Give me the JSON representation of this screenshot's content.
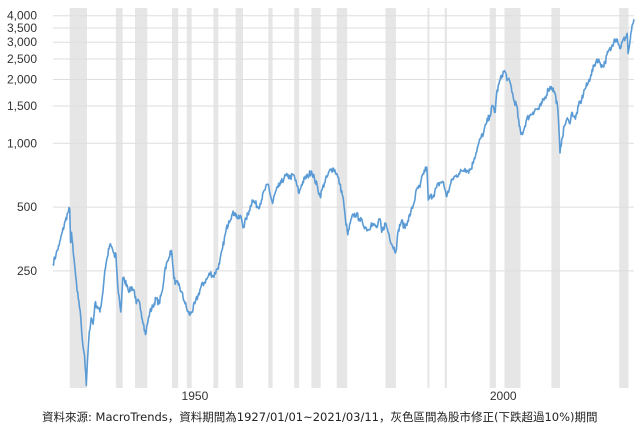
{
  "note": "資料來源: MacroTrends，資料期間為1927/01/01~2021/03/11，灰色區間為股市修正(下跌超過10%)期間",
  "colors": {
    "line": "#5b9bd5",
    "band": "#e6e6e6",
    "grid": "#dedede"
  },
  "chart_data": {
    "type": "line",
    "title": "",
    "xlabel": "",
    "ylabel": "",
    "y_scale": "log",
    "ylim": [
      70,
      4350
    ],
    "xlim": [
      1927.0,
      2021.2
    ],
    "grid": "horizontal",
    "y_ticks": [
      {
        "value": 250,
        "label": "250"
      },
      {
        "value": 500,
        "label": "500"
      },
      {
        "value": 1000,
        "label": "1,000"
      },
      {
        "value": 1500,
        "label": "1,500"
      },
      {
        "value": 2000,
        "label": "2,000"
      },
      {
        "value": 2500,
        "label": "2,500"
      },
      {
        "value": 3000,
        "label": "3,000"
      },
      {
        "value": 3500,
        "label": "3,500"
      },
      {
        "value": 4000,
        "label": "4,000"
      }
    ],
    "x_ticks": [
      {
        "value": 1950,
        "label": "1950"
      },
      {
        "value": 2000,
        "label": "2000"
      }
    ],
    "correction_periods": [
      [
        1929.7,
        1932.5
      ],
      [
        1937.2,
        1938.3
      ],
      [
        1940.3,
        1942.3
      ],
      [
        1946.3,
        1947.3
      ],
      [
        1948.7,
        1949.5
      ],
      [
        1953.0,
        1953.8
      ],
      [
        1956.6,
        1957.8
      ],
      [
        1961.9,
        1962.6
      ],
      [
        1966.1,
        1966.9
      ],
      [
        1968.9,
        1970.4
      ],
      [
        1973.0,
        1974.7
      ],
      [
        1980.9,
        1982.6
      ],
      [
        1987.7,
        1987.95
      ],
      [
        1990.5,
        1990.85
      ],
      [
        1997.8,
        1998.8
      ],
      [
        2000.2,
        2002.8
      ],
      [
        2007.8,
        2009.2
      ],
      [
        2018.8,
        2020.3
      ]
    ],
    "series": [
      {
        "x": [
          1927.0,
          1927.5,
          1928.0,
          1928.5,
          1929.0,
          1929.4,
          1929.7,
          1929.85,
          1930.0,
          1930.3,
          1930.6,
          1930.9,
          1931.2,
          1931.5,
          1931.8,
          1932.1,
          1932.4,
          1932.6,
          1932.9,
          1933.2,
          1933.5,
          1933.8,
          1934.2,
          1934.6,
          1935.0,
          1935.4,
          1935.8,
          1936.2,
          1936.6,
          1937.0,
          1937.2,
          1937.5,
          1937.8,
          1938.0,
          1938.3,
          1938.6,
          1939.0,
          1939.4,
          1939.8,
          1940.2,
          1940.5,
          1940.9,
          1941.3,
          1941.7,
          1942.0,
          1942.3,
          1942.7,
          1943.2,
          1943.7,
          1944.2,
          1944.7,
          1945.2,
          1945.7,
          1946.0,
          1946.3,
          1946.6,
          1946.9,
          1947.3,
          1947.8,
          1948.3,
          1948.7,
          1949.1,
          1949.5,
          1950.0,
          1950.5,
          1951.0,
          1951.5,
          1952.0,
          1952.5,
          1953.0,
          1953.6,
          1954.0,
          1954.5,
          1955.0,
          1955.5,
          1956.0,
          1956.5,
          1957.0,
          1957.5,
          1957.9,
          1958.3,
          1958.8,
          1959.3,
          1959.8,
          1960.3,
          1960.8,
          1961.3,
          1961.9,
          1962.3,
          1962.6,
          1963.0,
          1963.5,
          1964.0,
          1964.5,
          1965.0,
          1965.5,
          1966.0,
          1966.5,
          1966.9,
          1967.3,
          1967.8,
          1968.3,
          1968.9,
          1969.4,
          1969.9,
          1970.3,
          1970.6,
          1971.0,
          1971.5,
          1972.0,
          1972.5,
          1973.0,
          1973.5,
          1974.0,
          1974.4,
          1974.8,
          1975.2,
          1975.7,
          1976.2,
          1976.7,
          1977.2,
          1977.7,
          1978.2,
          1978.6,
          1979.0,
          1979.5,
          1980.0,
          1980.3,
          1980.9,
          1981.5,
          1982.0,
          1982.6,
          1983.0,
          1983.5,
          1984.0,
          1984.5,
          1985.0,
          1985.5,
          1986.0,
          1986.5,
          1987.0,
          1987.6,
          1987.85,
          1988.2,
          1988.7,
          1989.2,
          1989.7,
          1990.2,
          1990.6,
          1990.85,
          1991.3,
          1991.8,
          1992.3,
          1992.8,
          1993.3,
          1993.8,
          1994.3,
          1994.8,
          1995.3,
          1995.8,
          1996.3,
          1996.8,
          1997.3,
          1997.8,
          1998.3,
          1998.7,
          1998.9,
          1999.3,
          1999.8,
          2000.2,
          2000.7,
          2001.2,
          2001.7,
          2002.2,
          2002.6,
          2002.9,
          2003.3,
          2003.8,
          2004.3,
          2004.8,
          2005.3,
          2005.8,
          2006.3,
          2006.8,
          2007.3,
          2007.8,
          2008.3,
          2008.8,
          2009.0,
          2009.2,
          2009.5,
          2009.9,
          2010.3,
          2010.7,
          2011.2,
          2011.7,
          2012.2,
          2012.7,
          2013.2,
          2013.7,
          2014.2,
          2014.7,
          2015.2,
          2015.7,
          2016.1,
          2016.5,
          2017.0,
          2017.5,
          2018.0,
          2018.5,
          2018.9,
          2019.3,
          2019.8,
          2020.1,
          2020.25,
          2020.5,
          2020.8,
          2021.0,
          2021.2
        ],
        "y": [
          270,
          300,
          330,
          380,
          430,
          470,
          490,
          340,
          380,
          300,
          250,
          200,
          180,
          150,
          115,
          100,
          72,
          95,
          130,
          150,
          140,
          175,
          170,
          160,
          190,
          250,
          290,
          330,
          320,
          290,
          300,
          210,
          180,
          160,
          230,
          225,
          215,
          200,
          210,
          200,
          175,
          180,
          160,
          140,
          125,
          140,
          160,
          170,
          185,
          175,
          200,
          260,
          280,
          310,
          300,
          230,
          220,
          215,
          200,
          180,
          165,
          155,
          160,
          175,
          190,
          210,
          220,
          230,
          245,
          235,
          255,
          270,
          320,
          380,
          430,
          460,
          470,
          440,
          450,
          400,
          440,
          480,
          540,
          520,
          500,
          540,
          600,
          640,
          560,
          520,
          580,
          620,
          650,
          690,
          700,
          690,
          710,
          640,
          580,
          640,
          680,
          700,
          740,
          680,
          620,
          560,
          600,
          650,
          700,
          750,
          760,
          720,
          640,
          560,
          440,
          370,
          420,
          460,
          460,
          440,
          420,
          400,
          390,
          420,
          410,
          400,
          440,
          380,
          420,
          370,
          330,
          310,
          390,
          430,
          400,
          430,
          470,
          520,
          610,
          620,
          720,
          770,
          540,
          560,
          570,
          620,
          650,
          660,
          600,
          560,
          620,
          680,
          700,
          720,
          740,
          760,
          740,
          760,
          850,
          950,
          1050,
          1120,
          1250,
          1350,
          1500,
          1400,
          1700,
          1900,
          2100,
          2200,
          2000,
          1900,
          1600,
          1500,
          1200,
          1100,
          1150,
          1300,
          1350,
          1400,
          1450,
          1450,
          1550,
          1650,
          1800,
          1850,
          1750,
          1500,
          1200,
          900,
          1050,
          1200,
          1300,
          1250,
          1400,
          1300,
          1500,
          1600,
          1800,
          1900,
          2100,
          2300,
          2500,
          2400,
          2300,
          2400,
          2700,
          2800,
          3100,
          3100,
          2800,
          3000,
          3150,
          3300,
          2650,
          2950,
          3400,
          3650,
          3850
        ]
      }
    ]
  }
}
